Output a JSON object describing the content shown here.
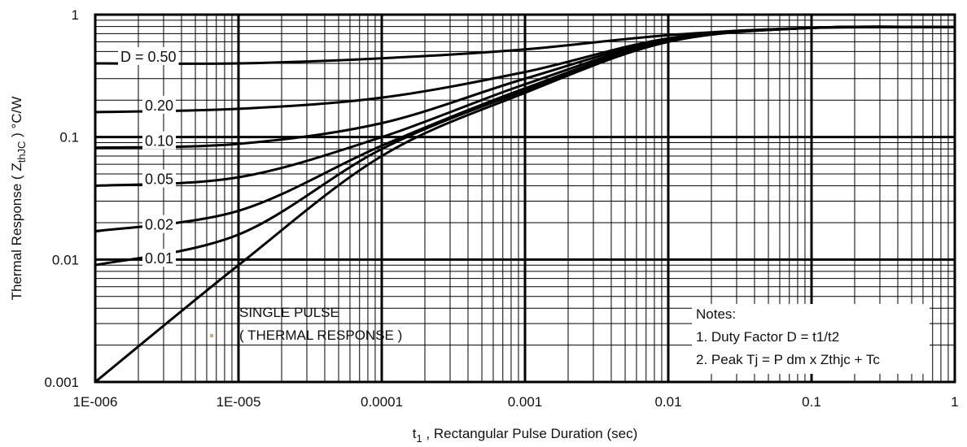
{
  "chart_data": {
    "type": "line",
    "xlabel_main": "t",
    "xlabel_sub": "1",
    "xlabel_rest": " , Rectangular Pulse Duration (sec)",
    "ylabel_main": "Thermal Response ( Z",
    "ylabel_sub": "thJC",
    "ylabel_rest": " ) °C/W",
    "xscale": "log",
    "yscale": "log",
    "xlim": [
      1e-06,
      1
    ],
    "ylim": [
      0.001,
      1
    ],
    "grid": true,
    "x_tick_labels": [
      "1E-006",
      "1E-005",
      "0.0001",
      "0.001",
      "0.01",
      "0.1",
      "1"
    ],
    "y_tick_labels": [
      "0.001",
      "0.01",
      "0.1",
      "1"
    ],
    "series": [
      {
        "name": "D = 0.50",
        "x": [
          1e-06,
          1e-05,
          0.0001,
          0.001,
          0.01,
          0.1,
          1
        ],
        "y": [
          0.4,
          0.4,
          0.44,
          0.52,
          0.68,
          0.78,
          0.79
        ]
      },
      {
        "name": "0.20",
        "x": [
          1e-06,
          1e-05,
          0.0001,
          0.001,
          0.01,
          0.1,
          1
        ],
        "y": [
          0.16,
          0.17,
          0.21,
          0.34,
          0.64,
          0.78,
          0.79
        ]
      },
      {
        "name": "0.10",
        "x": [
          1e-06,
          1e-05,
          0.0001,
          0.001,
          0.01,
          0.1,
          1
        ],
        "y": [
          0.082,
          0.088,
          0.13,
          0.3,
          0.63,
          0.78,
          0.79
        ]
      },
      {
        "name": "0.05",
        "x": [
          1e-06,
          1e-05,
          0.0001,
          0.001,
          0.01,
          0.1,
          1
        ],
        "y": [
          0.04,
          0.047,
          0.1,
          0.27,
          0.62,
          0.78,
          0.79
        ]
      },
      {
        "name": "0.02",
        "x": [
          1e-06,
          1e-05,
          0.0001,
          0.001,
          0.01,
          0.1,
          1
        ],
        "y": [
          0.017,
          0.025,
          0.085,
          0.25,
          0.61,
          0.78,
          0.79
        ]
      },
      {
        "name": "0.01",
        "x": [
          1e-06,
          1e-05,
          0.0001,
          0.001,
          0.01,
          0.1,
          1
        ],
        "y": [
          0.009,
          0.016,
          0.08,
          0.24,
          0.6,
          0.78,
          0.79
        ]
      },
      {
        "name": "SINGLE PULSE ( THERMAL RESPONSE )",
        "x": [
          1e-06,
          1e-05,
          0.0001,
          0.001,
          0.01,
          0.1,
          1
        ],
        "y": [
          0.001,
          0.009,
          0.07,
          0.23,
          0.6,
          0.78,
          0.79
        ]
      }
    ],
    "annotations": {
      "single_pulse_line1": "SINGLE PULSE",
      "single_pulse_line2": "( THERMAL RESPONSE )",
      "notes_title": "Notes:",
      "note1": "1. Duty Factor D = t1/t2",
      "note2": "2. Peak Tj = P dm x Zthjc + Tc"
    }
  }
}
